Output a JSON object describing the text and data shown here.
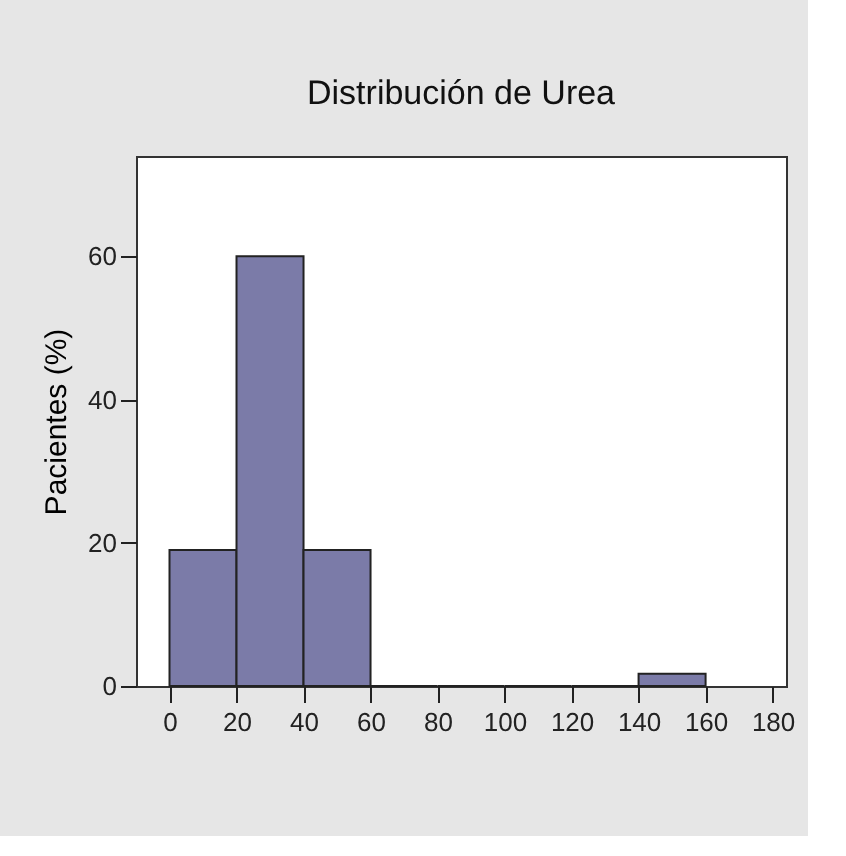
{
  "chart_data": {
    "type": "histogram",
    "title": "Distribución de Urea",
    "ylabel": "Pacientes (%)",
    "bins": [
      0,
      20,
      40,
      60,
      80,
      100,
      120,
      140,
      160
    ],
    "values": [
      19,
      60,
      19,
      0,
      0,
      0,
      0,
      1.7
    ],
    "color": "#7b7ba8",
    "xlim": [
      -10,
      184
    ],
    "xticks": [
      0,
      20,
      40,
      60,
      80,
      100,
      120,
      140,
      160,
      180
    ],
    "ylim": [
      0,
      74
    ],
    "yticks": [
      0,
      20,
      40,
      60
    ],
    "grid": false
  }
}
